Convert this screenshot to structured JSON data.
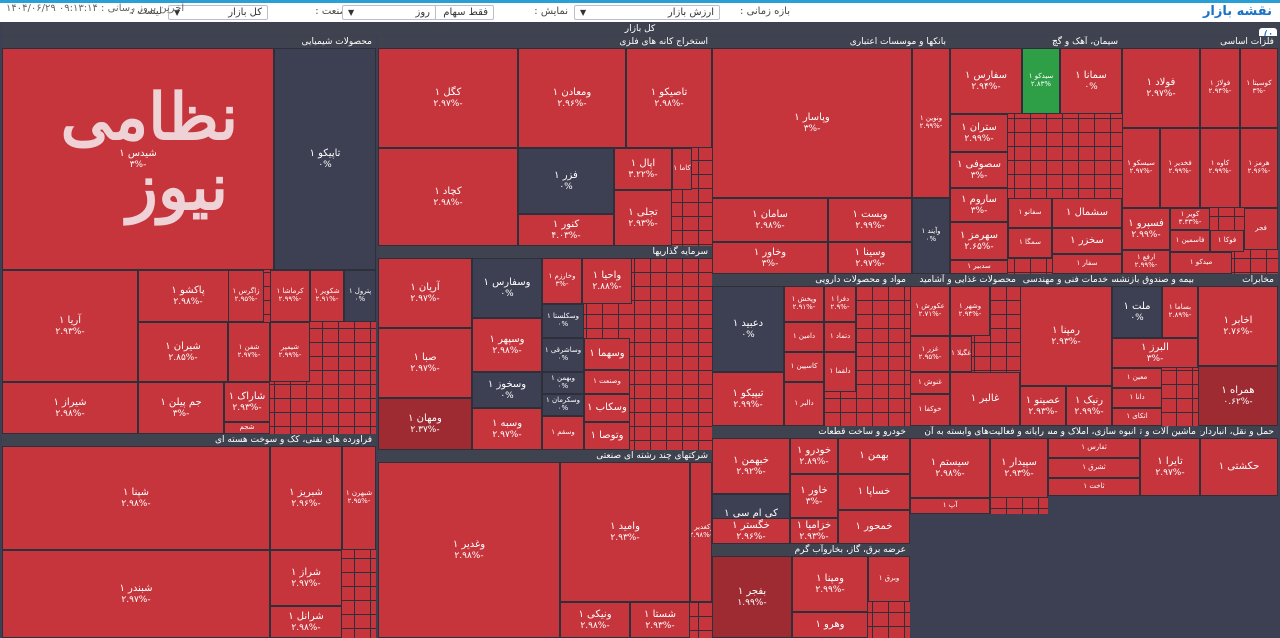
{
  "toolbar": {
    "title": "نقشه بازار",
    "list_label": "لیست :",
    "list_value": "کل بازار",
    "industry_label": "صنعت :",
    "industry_value": "فقط سهام",
    "display_label": "نمایش :",
    "display_value": "ارزش بازار",
    "timeframe_label": "بازه زمانی :",
    "timeframe_value": "روز",
    "last_update": "آخرین بروز رسانی : ۰۹:۱۳:۱۴ ۱۴۰۴/۰۶/۲۹"
  },
  "colors": {
    "negative": "#c6343c",
    "deep_negative": "#9e2a32",
    "neutral": "#3d4052",
    "positive": "#2e9e47"
  },
  "market_header": "کل بازار",
  "watermark": "نظامی نیوز",
  "sections": [
    {
      "id": "chem",
      "title": "محصولات شیمیایی",
      "cells": [
        {
          "n": "شیدس ۱",
          "p": "-۳%"
        },
        {
          "n": "تاپیکو ۱",
          "p": "۰%",
          "c": "neutral"
        },
        {
          "n": "پاکشو ۱",
          "p": "-۲.۹۸%"
        },
        {
          "n": "زاگرس ۱",
          "p": "-۲.۹۵%"
        },
        {
          "n": "کرماشا ۱",
          "p": "-۲.۹۹%"
        },
        {
          "n": "شکویر ۱",
          "p": "-۲.۹۱%"
        },
        {
          "n": "آریا ۱",
          "p": "-۲.۹۳%"
        },
        {
          "n": "شیران ۱",
          "p": "-۲.۸۵%"
        },
        {
          "n": "شفن ۱",
          "p": "-۲.۹۷%"
        },
        {
          "n": "شیراز ۱",
          "p": "-۲.۹۸%"
        },
        {
          "n": "جم پیلن ۱",
          "p": "-۳%"
        },
        {
          "n": "شاراک ۱",
          "p": "-۲.۹۳%"
        },
        {
          "n": "شجم",
          "p": ""
        },
        {
          "n": "شیمپر",
          "p": "-۲.۹۹%"
        },
        {
          "n": "پترول ۱",
          "p": "۰%",
          "c": "neutral"
        }
      ]
    },
    {
      "id": "metal",
      "title": "استخراج کانه های فلزی",
      "cells": [
        {
          "n": "کگل ۱",
          "p": "-۲.۹۷%"
        },
        {
          "n": "ومعادن ۱",
          "p": "-۲.۹۶%"
        },
        {
          "n": "تاصیکو ۱",
          "p": "-۲.۹۸%"
        },
        {
          "n": "کچاد ۱",
          "p": "-۲.۹۸%"
        },
        {
          "n": "فزر ۱",
          "p": "۰%",
          "c": "neutral"
        },
        {
          "n": "اپال ۱",
          "p": "-۳.۲۲%"
        },
        {
          "n": "کنور ۱",
          "p": "-۴.۰۳%"
        },
        {
          "n": "تجلی ۱",
          "p": "-۲.۹۳%"
        },
        {
          "n": "کاما ۱",
          "p": ""
        }
      ]
    },
    {
      "id": "bank",
      "title": "بانکها و موسسات اعتباری",
      "cells": [
        {
          "n": "وپاسار ۱",
          "p": "-۳%"
        },
        {
          "n": "ونوین ۱",
          "p": "-۲.۹۹%"
        },
        {
          "n": "سامان ۱",
          "p": "-۲.۹۸%"
        },
        {
          "n": "وبست ۱",
          "p": "-۲.۹۹%"
        },
        {
          "n": "وخاور ۱",
          "p": "-۳%"
        },
        {
          "n": "وسینا ۱",
          "p": "-۲.۹۷%"
        },
        {
          "n": "وآیند ۱",
          "p": "۰%",
          "c": "neutral"
        }
      ]
    },
    {
      "id": "cement",
      "title": "سیمان، آهک و گچ",
      "cells": [
        {
          "n": "سفارس ۱",
          "p": "-۲.۹۴%"
        },
        {
          "n": "سیدکو ۱",
          "p": "۲.۸۳%",
          "c": "positive"
        },
        {
          "n": "سمانا ۱",
          "p": "۰%"
        },
        {
          "n": "ستران ۱",
          "p": "-۲.۹۹%"
        },
        {
          "n": "سصوفی ۱",
          "p": "-۳%"
        },
        {
          "n": "ساروم ۱",
          "p": "-۳%"
        },
        {
          "n": "سهرمز ۱",
          "p": "-۲.۶۵%"
        },
        {
          "n": "سفانو ۱",
          "p": ""
        },
        {
          "n": "سشمال ۱",
          "p": ""
        },
        {
          "n": "سخزر ۱",
          "p": ""
        },
        {
          "n": "سفار ۱",
          "p": ""
        },
        {
          "n": "سمگا ۱",
          "p": ""
        },
        {
          "n": "سدبیر ۱",
          "p": ""
        }
      ]
    },
    {
      "id": "basemetal",
      "title": "فلزات اساسی",
      "cells": [
        {
          "n": "فولاد ۱",
          "p": "-۲.۹۷%"
        },
        {
          "n": "فولاژ ۱",
          "p": "-۲.۹۴%"
        },
        {
          "n": "کوسیتا ۱",
          "p": "-۳%"
        },
        {
          "n": "سیسکو ۱",
          "p": "-۲.۹۷%"
        },
        {
          "n": "فخدیر ۱",
          "p": "-۲.۹۹%"
        },
        {
          "n": "کاوه ۱",
          "p": "-۲.۹۹%"
        },
        {
          "n": "هرمز ۱",
          "p": "-۲.۹۶%"
        },
        {
          "n": "فسپرو ۱",
          "p": "-۲.۹۹%"
        },
        {
          "n": "کویر ۱",
          "p": "-۳.۳۳%"
        },
        {
          "n": "فاسمین ۱",
          "p": ""
        },
        {
          "n": "ارفع ۱",
          "p": "-۲.۹۹%"
        },
        {
          "n": "فوکا ۱",
          "p": ""
        },
        {
          "n": "میدکو ۱",
          "p": ""
        },
        {
          "n": "فجر",
          "p": ""
        }
      ]
    },
    {
      "id": "invest",
      "title": "سرمایه گذاریها",
      "cells": [
        {
          "n": "آریان ۱",
          "p": "-۲.۹۷%"
        },
        {
          "n": "وسفارس ۱",
          "p": "۰%",
          "c": "neutral"
        },
        {
          "n": "وخارزم ۱",
          "p": "-۳%"
        },
        {
          "n": "واحیا ۱",
          "p": "-۲.۸۸%"
        },
        {
          "n": "صبا ۱",
          "p": "-۲.۹۷%"
        },
        {
          "n": "وسپهر ۱",
          "p": "-۲.۹۸%"
        },
        {
          "n": "وسکلستا ۱",
          "p": "۰%",
          "c": "neutral"
        },
        {
          "n": "وساشرقی ۱",
          "p": "۰%",
          "c": "neutral"
        },
        {
          "n": "وسخوز ۱",
          "p": "۰%",
          "c": "neutral"
        },
        {
          "n": "وبهمن ۱",
          "p": "۰%",
          "c": "neutral"
        },
        {
          "n": "ومهان ۱",
          "p": "-۲.۳۷%",
          "c": "deep"
        },
        {
          "n": "وسبه ۱",
          "p": "-۲.۹۷%"
        },
        {
          "n": "وسکرمان ۱",
          "p": "۰%",
          "c": "neutral"
        },
        {
          "n": "وسقم ۱",
          "p": ""
        },
        {
          "n": "وسکاب ۱",
          "p": ""
        },
        {
          "n": "وتوصا ۱",
          "p": ""
        },
        {
          "n": "وصنعت ۱",
          "p": ""
        },
        {
          "n": "وسهما ۱",
          "p": ""
        }
      ]
    },
    {
      "id": "pharma",
      "title": "مواد و محصولات دارویی",
      "cells": [
        {
          "n": "دعبید ۱",
          "p": "۰%",
          "c": "neutral"
        },
        {
          "n": "وپخش ۱",
          "p": "-۲.۹۱%"
        },
        {
          "n": "دفرا ۱",
          "p": "-۲.۹%"
        },
        {
          "n": "دامین ۱",
          "p": ""
        },
        {
          "n": "کاسپین ۱",
          "p": ""
        },
        {
          "n": "دتماد ۱",
          "p": ""
        },
        {
          "n": "تیپیکو ۱",
          "p": "-۲.۹۹%"
        },
        {
          "n": "دالبر ۱",
          "p": ""
        },
        {
          "n": "دلقما ۱",
          "p": ""
        }
      ]
    },
    {
      "id": "food",
      "title": "محصولات غذایی و آشامید",
      "cells": [
        {
          "n": "عکورش ۱",
          "p": "-۲.۷۱%"
        },
        {
          "n": "وشهر ۱",
          "p": "-۲.۹۴%"
        },
        {
          "n": "غزر ۱",
          "p": "-۲.۹۵%"
        },
        {
          "n": "غنوش ۱",
          "p": ""
        },
        {
          "n": "خوکفا ۱",
          "p": ""
        },
        {
          "n": "غالبر ۱",
          "p": ""
        },
        {
          "n": "غگیلا ۱",
          "p": ""
        }
      ]
    },
    {
      "id": "tech",
      "title": "خدمات فنی و مهندسی",
      "cells": [
        {
          "n": "رمپنا ۱",
          "p": "-۲.۹۳%"
        },
        {
          "n": "عصینو ۱",
          "p": "-۲.۹۳%"
        },
        {
          "n": "رنیک ۱",
          "p": "-۲.۹۹%"
        },
        {
          "n": "کیسون ۱",
          "p": "-۲.۹۹%"
        }
      ]
    },
    {
      "id": "insurance",
      "title": "بیمه و صندوق بازنشسته",
      "cells": [
        {
          "n": "ملت ۱",
          "p": "۰%",
          "c": "neutral"
        },
        {
          "n": "بساما ۱",
          "p": "-۲.۸۹%"
        },
        {
          "n": "البرز ۱",
          "p": "-۳%"
        },
        {
          "n": "معین ۱",
          "p": ""
        },
        {
          "n": "دانا ۱",
          "p": ""
        },
        {
          "n": "اتکای ۱",
          "p": ""
        }
      ]
    },
    {
      "id": "telecom",
      "title": "مخابرات",
      "cells": [
        {
          "n": "اخابر ۱",
          "p": "-۲.۷۶%"
        },
        {
          "n": "همراه ۱",
          "p": "-۰.۶۲%",
          "c": "deep"
        }
      ]
    },
    {
      "id": "petro",
      "title": "فراورده های نفتی، کک و سوخت هسته ای",
      "cells": [
        {
          "n": "شپنا ۱",
          "p": "-۲.۹۸%"
        },
        {
          "n": "شبریز ۱",
          "p": "-۲.۹۶%"
        },
        {
          "n": "شبهرن ۱",
          "p": "-۲.۹۵%"
        },
        {
          "n": "شبندر ۱",
          "p": "-۲.۹۷%"
        },
        {
          "n": "شراز ۱",
          "p": "-۲.۹۷%"
        },
        {
          "n": "شرانل ۱",
          "p": "-۲.۹۸%"
        }
      ]
    },
    {
      "id": "multi",
      "title": "شرکتهای چند رشته ای صنعتی",
      "cells": [
        {
          "n": "وغدیر ۱",
          "p": "-۲.۹۸%"
        },
        {
          "n": "وامید ۱",
          "p": "-۲.۹۳%"
        },
        {
          "n": "وکغدیر ۱",
          "p": "-۲.۹۸%"
        },
        {
          "n": "ونیکی ۱",
          "p": "-۲.۹۸%"
        },
        {
          "n": "شستا ۱",
          "p": "-۲.۹۳%"
        }
      ]
    },
    {
      "id": "auto",
      "title": "خودرو و ساخت قطعات",
      "cells": [
        {
          "n": "خبهمن ۱",
          "p": "-۲.۹۲%"
        },
        {
          "n": "خودرو ۱",
          "p": "-۲.۸۹%"
        },
        {
          "n": "بهمن ۱",
          "p": ""
        },
        {
          "n": "خاور ۱",
          "p": "-۳%"
        },
        {
          "n": "کی ام سی ۱",
          "p": "۰%",
          "c": "neutral"
        },
        {
          "n": "خزامیا ۱",
          "p": "-۲.۹۳%"
        },
        {
          "n": "خگستر ۱",
          "p": "-۲.۹۶%"
        },
        {
          "n": "خساپا ۱",
          "p": ""
        },
        {
          "n": "خمحور ۱",
          "p": ""
        }
      ]
    },
    {
      "id": "utility",
      "title": "عرضه برق، گاز، بخاروآب گرم",
      "cells": [
        {
          "n": "بفجر ۱",
          "p": "-۱.۹۹%",
          "c": "deep"
        },
        {
          "n": "ومپنا ۱",
          "p": "-۲.۹۹%"
        },
        {
          "n": "وبرق ۱",
          "p": ""
        },
        {
          "n": "وهرو ۱",
          "p": ""
        }
      ]
    },
    {
      "id": "commerce",
      "title": "رایانه و فعالیت‌های وابسته به آن",
      "cells": [
        {
          "n": "سیستم ۱",
          "p": "-۲.۹۸%"
        },
        {
          "n": "سپیدار ۱",
          "p": "-۲.۹۳%"
        },
        {
          "n": "آپ ۱",
          "p": ""
        }
      ]
    },
    {
      "id": "realestate",
      "title": "انبوه سازی، املاک و مستغلات",
      "cells": [
        {
          "n": "ثفارس ۱",
          "p": ""
        },
        {
          "n": "ثشرق ۱",
          "p": ""
        },
        {
          "n": "ثاخت ۱",
          "p": ""
        }
      ]
    },
    {
      "id": "machine",
      "title": "ماشین آلات و تجهیزات",
      "cells": [
        {
          "n": "تایرا ۱",
          "p": "-۲.۹۷%"
        },
        {
          "n": "خاهن ۱",
          "p": ""
        }
      ]
    },
    {
      "id": "transport",
      "title": "حمل و نقل، انبارداری",
      "cells": [
        {
          "n": "حکشتی ۱",
          "p": ""
        }
      ]
    }
  ]
}
